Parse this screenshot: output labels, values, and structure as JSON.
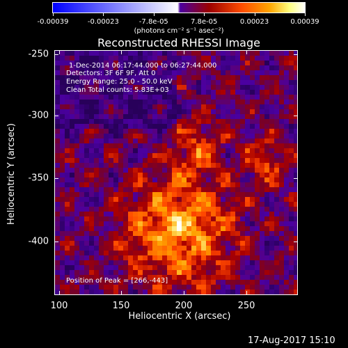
{
  "colorbar": {
    "tick_labels": [
      "-0.00039",
      "-0.00023",
      "-7.8e-05",
      "7.8e-05",
      "0.00023",
      "0.00039"
    ],
    "units": "(photons cm⁻² s⁻¹ asec⁻²)"
  },
  "title": "Reconstructed RHESSI Image",
  "info_lines": [
    "1-Dec-2014 06:17:44.000 to 06:27:44.000",
    "Detectors: 3F 6F 9F, Att 0",
    "Energy Range: 25.0 - 50.0 keV",
    "Clean    Total counts: 5.83E+03"
  ],
  "peak_label": "Position of Peak = [266,-443]",
  "axes": {
    "x_title": "Heliocentric X (arcsec)",
    "y_title": "Heliocentric Y (arcsec)",
    "x_ticks": [
      "100",
      "150",
      "200",
      "250"
    ],
    "y_ticks": [
      "-250",
      "-300",
      "-350",
      "-400"
    ]
  },
  "timestamp": "17-Aug-2017 15:10",
  "colors": {
    "colormap": [
      "#0000ff",
      "#ffffff",
      "#4b00a0",
      "#9b0000",
      "#ff4d00",
      "#ffa500",
      "#ffff80",
      "#ffffff"
    ]
  }
}
